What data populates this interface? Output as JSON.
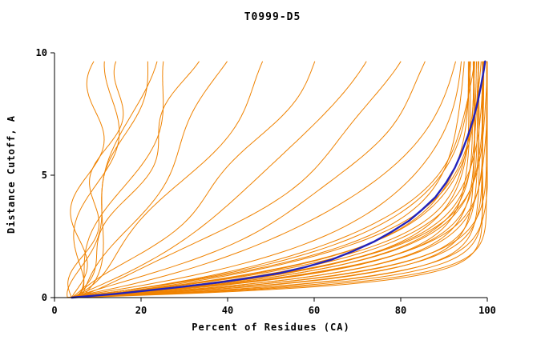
{
  "chart_data": {
    "type": "line",
    "title": "T0999-D5",
    "xlabel": "Percent of Residues (CA)",
    "ylabel": "Distance Cutoff, A",
    "xlim": [
      0,
      100
    ],
    "ylim": [
      0,
      10
    ],
    "x_ticks": [
      0,
      20,
      40,
      60,
      80,
      100
    ],
    "y_ticks": [
      0,
      5,
      10
    ],
    "grid": false,
    "legend": "none",
    "sample_y_max": 9.65,
    "colors": {
      "models": "#ef8200",
      "highlight": "#2222bb",
      "axis": "#000000",
      "background": "#ffffff"
    },
    "model_series_params_order": [
      "tau",
      "xmax",
      "x0",
      "wiggle_amp",
      "wiggle_freq",
      "wiggle_phase"
    ],
    "model_series": [
      [
        130,
        100,
        4,
        3.0,
        1.2,
        0.3
      ],
      [
        90,
        100,
        5,
        3.5,
        0.9,
        2.1
      ],
      [
        70,
        100,
        4,
        2.5,
        1.4,
        4.0
      ],
      [
        55,
        100,
        6,
        3.0,
        0.7,
        1.0
      ],
      [
        45,
        100,
        3,
        2.0,
        1.1,
        5.2
      ],
      [
        36,
        100,
        5,
        3.5,
        0.8,
        2.6
      ],
      [
        28,
        100,
        4,
        2.5,
        1.3,
        0.9
      ],
      [
        22,
        100,
        6,
        2.0,
        1.0,
        3.3
      ],
      [
        15,
        100,
        4,
        3.0,
        0.9,
        1.7
      ],
      [
        11,
        100,
        5,
        2.5,
        1.2,
        4.4
      ],
      [
        8,
        100,
        4,
        2.0,
        0.8,
        0.2
      ],
      [
        6,
        98,
        5,
        2.5,
        1.1,
        2.9
      ],
      [
        4.5,
        97,
        4,
        2.0,
        1.3,
        5.0
      ],
      [
        3.5,
        99,
        3,
        1.8,
        0.9,
        1.4
      ],
      [
        2.5,
        96,
        3,
        1.5,
        1.0,
        0.0
      ],
      [
        2.2,
        98,
        4,
        1.2,
        1.3,
        1.1
      ],
      [
        2.0,
        97,
        3,
        1.5,
        0.8,
        2.2
      ],
      [
        1.9,
        99,
        5,
        1.0,
        1.1,
        3.3
      ],
      [
        1.8,
        95,
        3,
        1.4,
        0.9,
        4.4
      ],
      [
        1.7,
        98,
        4,
        1.1,
        1.2,
        5.5
      ],
      [
        1.6,
        96,
        3,
        1.3,
        1.0,
        0.6
      ],
      [
        1.5,
        99,
        4,
        1.0,
        0.7,
        1.8
      ],
      [
        1.5,
        97,
        3,
        1.2,
        1.4,
        2.9
      ],
      [
        1.4,
        100,
        5,
        1.0,
        1.0,
        4.1
      ],
      [
        1.35,
        98,
        3,
        1.3,
        0.8,
        5.2
      ],
      [
        1.3,
        96,
        4,
        1.1,
        1.2,
        0.4
      ],
      [
        1.25,
        99,
        3,
        1.0,
        0.9,
        1.5
      ],
      [
        1.2,
        97,
        4,
        1.2,
        1.1,
        2.7
      ],
      [
        1.15,
        100,
        3,
        1.0,
        1.3,
        3.8
      ],
      [
        1.1,
        98,
        4,
        1.1,
        0.8,
        5.0
      ],
      [
        1.05,
        96,
        3,
        1.0,
        1.0,
        0.1
      ],
      [
        1.0,
        99,
        4,
        1.2,
        1.2,
        1.2
      ],
      [
        0.95,
        97,
        3,
        1.0,
        0.9,
        2.4
      ],
      [
        0.9,
        100,
        4,
        1.1,
        1.1,
        3.5
      ],
      [
        0.85,
        98,
        3,
        1.0,
        1.3,
        4.7
      ],
      [
        0.8,
        99,
        4,
        1.2,
        0.8,
        5.8
      ],
      [
        0.75,
        97,
        3,
        1.0,
        1.0,
        0.9
      ],
      [
        0.7,
        100,
        4,
        1.1,
        1.2,
        2.0
      ],
      [
        0.65,
        98,
        3,
        1.0,
        0.9,
        3.1
      ],
      [
        0.6,
        99,
        4,
        1.1,
        1.1,
        4.3
      ],
      [
        0.55,
        100,
        3,
        1.0,
        1.3,
        5.4
      ],
      [
        0.5,
        99,
        4,
        1.2,
        0.8,
        0.7
      ]
    ],
    "highlight_series": {
      "points": [
        [
          4,
          0
        ],
        [
          14,
          0.15
        ],
        [
          22,
          0.3
        ],
        [
          30,
          0.45
        ],
        [
          38,
          0.62
        ],
        [
          45,
          0.8
        ],
        [
          52,
          1.0
        ],
        [
          58,
          1.25
        ],
        [
          64,
          1.55
        ],
        [
          69,
          1.9
        ],
        [
          74,
          2.3
        ],
        [
          78,
          2.7
        ],
        [
          82,
          3.15
        ],
        [
          85,
          3.6
        ],
        [
          88,
          4.1
        ],
        [
          90.5,
          4.7
        ],
        [
          92.5,
          5.3
        ],
        [
          94,
          5.9
        ],
        [
          95.5,
          6.6
        ],
        [
          96.8,
          7.3
        ],
        [
          97.8,
          8.0
        ],
        [
          98.6,
          8.7
        ],
        [
          99.2,
          9.3
        ],
        [
          99.5,
          9.65
        ]
      ]
    }
  }
}
